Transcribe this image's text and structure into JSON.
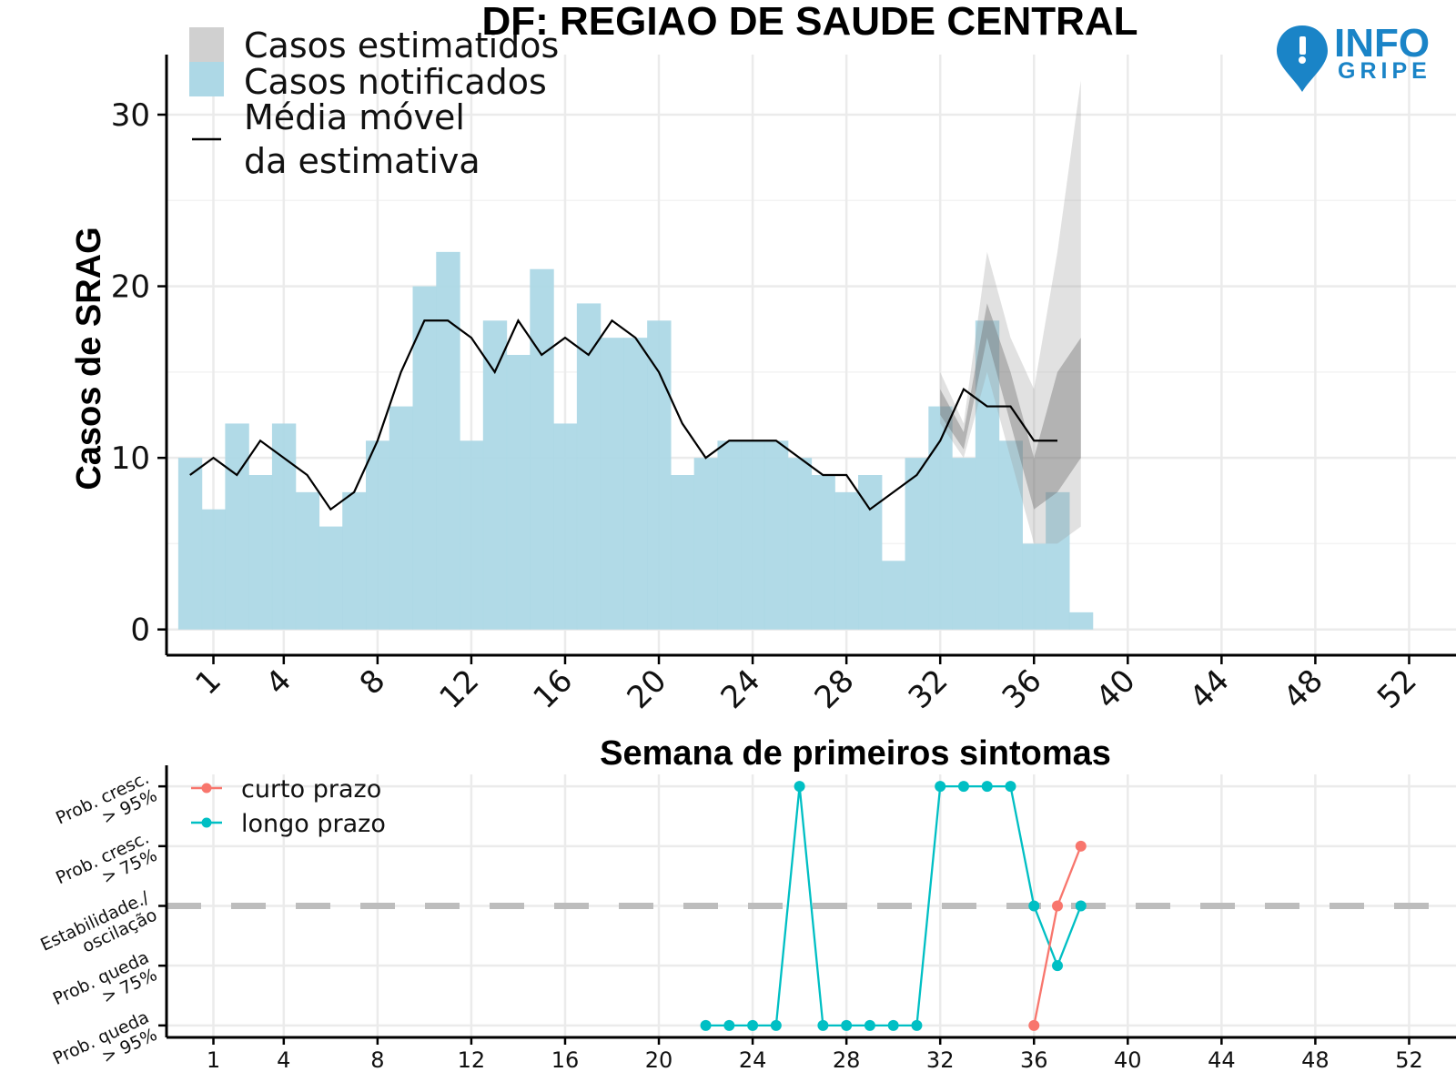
{
  "title": "DF: REGIAO DE SAUDE CENTRAL",
  "logo": {
    "line1": "INFO",
    "line2": "GRIPE",
    "color": "#1a84c7"
  },
  "colors": {
    "notified": "#add8e6",
    "estimated_outer": "#e0e0e0",
    "estimated_inner": "#b8b8b8",
    "moving_avg": "#000000",
    "short_term": "#f8766d",
    "long_term": "#00bfc4",
    "stability_line": "#bdbdbd"
  },
  "legend_top": {
    "estimated": "Casos estimatidos",
    "notified": "Casos notificados",
    "moving_avg_line1": "Média móvel",
    "moving_avg_line2": "da estimativa"
  },
  "legend_bottom": {
    "short_term": "curto prazo",
    "long_term": "longo prazo"
  },
  "chart_data": [
    {
      "type": "bar",
      "title": "DF: REGIAO DE SAUDE CENTRAL",
      "xlabel": "Semana de primeiros sintomas",
      "ylabel": "Casos de SRAG",
      "xticks": [
        1,
        4,
        8,
        12,
        16,
        20,
        24,
        28,
        32,
        36,
        40,
        44,
        48,
        52
      ],
      "yticks": [
        0,
        10,
        20,
        30
      ],
      "xlim": [
        -1,
        54
      ],
      "ylim": [
        -1.5,
        33.5
      ],
      "grid": true,
      "legend_position": "top-left",
      "series": [
        {
          "name": "Casos notificados",
          "type": "bar",
          "x": [
            0,
            1,
            2,
            3,
            4,
            5,
            6,
            7,
            8,
            9,
            10,
            11,
            12,
            13,
            14,
            15,
            16,
            17,
            18,
            19,
            20,
            21,
            22,
            23,
            24,
            25,
            26,
            27,
            28,
            29,
            30,
            31,
            32,
            33,
            34,
            35,
            36,
            37,
            38
          ],
          "values": [
            10,
            7,
            12,
            9,
            12,
            8,
            6,
            8,
            11,
            13,
            20,
            22,
            11,
            18,
            16,
            21,
            12,
            19,
            17,
            17,
            18,
            9,
            10,
            11,
            11,
            11,
            10,
            9,
            8,
            9,
            4,
            10,
            13,
            10,
            18,
            11,
            5,
            8,
            1
          ]
        },
        {
          "name": "Média móvel da estimativa",
          "type": "line",
          "x": [
            0,
            1,
            2,
            3,
            4,
            5,
            6,
            7,
            8,
            9,
            10,
            11,
            12,
            13,
            14,
            15,
            16,
            17,
            18,
            19,
            20,
            21,
            22,
            23,
            24,
            25,
            26,
            27,
            28,
            29,
            30,
            31,
            32,
            33,
            34,
            35,
            36,
            37
          ],
          "values": [
            9,
            10,
            9,
            11,
            10,
            9,
            7,
            8,
            11,
            15,
            18,
            18,
            17,
            15,
            18,
            16,
            17,
            16,
            18,
            17,
            15,
            12,
            10,
            11,
            11,
            11,
            10,
            9,
            9,
            7,
            8,
            9,
            11,
            14,
            13,
            13,
            11,
            11
          ]
        },
        {
          "name": "Casos estimatidos",
          "type": "band",
          "x": [
            32,
            33,
            34,
            35,
            36,
            37,
            38
          ],
          "outer_low": [
            12,
            10,
            15,
            10,
            5,
            5,
            6
          ],
          "outer_high": [
            15,
            12,
            22,
            17,
            14,
            22,
            32
          ],
          "inner_low": [
            12.5,
            10.5,
            17,
            12,
            7,
            8,
            10
          ],
          "inner_high": [
            14,
            11.5,
            19,
            15,
            10,
            15,
            17
          ]
        }
      ]
    },
    {
      "type": "line",
      "xlabel": "",
      "ylabel": "",
      "xticks": [
        1,
        4,
        8,
        12,
        16,
        20,
        24,
        28,
        32,
        36,
        40,
        44,
        48,
        52
      ],
      "categories": [
        "Prob. queda > 95%",
        "Prob. queda > 75%",
        "Estabilidade./ oscilação",
        "Prob. cresc. > 75%",
        "Prob. cresc. > 95%"
      ],
      "category_lines": [
        [
          "Prob. queda",
          "> 95%"
        ],
        [
          "Prob. queda",
          "> 75%"
        ],
        [
          "Estabilidade./",
          "oscilação"
        ],
        [
          "Prob. cresc.",
          "> 75%"
        ],
        [
          "Prob. cresc.",
          "> 95%"
        ]
      ],
      "ylim": [
        -2.2,
        2.2
      ],
      "grid": true,
      "legend_position": "top-left",
      "reference_line": 0,
      "series": [
        {
          "name": "curto prazo",
          "x": [
            36,
            37,
            38
          ],
          "values": [
            -2,
            0,
            1
          ]
        },
        {
          "name": "longo prazo",
          "x": [
            22,
            23,
            24,
            25,
            26,
            27,
            28,
            29,
            30,
            31,
            32,
            33,
            34,
            35,
            36,
            37,
            38
          ],
          "values": [
            -2,
            -2,
            -2,
            -2,
            2,
            -2,
            -2,
            -2,
            -2,
            -2,
            2,
            2,
            2,
            2,
            0,
            -1,
            0
          ]
        }
      ]
    }
  ]
}
